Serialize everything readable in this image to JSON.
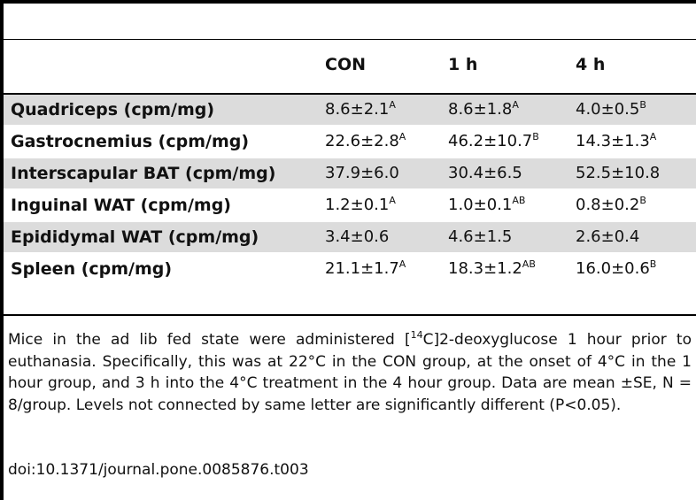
{
  "table": {
    "headers": [
      "",
      "CON",
      "1 h",
      "4 h"
    ],
    "rows": [
      {
        "label": "Quadriceps (cpm/mg)",
        "con": {
          "value": "8.6±2.1",
          "sup": "A"
        },
        "h1": {
          "value": "8.6±1.8",
          "sup": "A"
        },
        "h4": {
          "value": "4.0±0.5",
          "sup": "B"
        }
      },
      {
        "label": "Gastrocnemius (cpm/mg)",
        "con": {
          "value": "22.6±2.8",
          "sup": "A"
        },
        "h1": {
          "value": "46.2±10.7",
          "sup": "B"
        },
        "h4": {
          "value": "14.3±1.3",
          "sup": "A"
        }
      },
      {
        "label": "Interscapular BAT (cpm/mg)",
        "con": {
          "value": "37.9±6.0",
          "sup": ""
        },
        "h1": {
          "value": "30.4±6.5",
          "sup": ""
        },
        "h4": {
          "value": "52.5±10.8",
          "sup": ""
        }
      },
      {
        "label": "Inguinal WAT (cpm/mg)",
        "con": {
          "value": "1.2±0.1",
          "sup": "A"
        },
        "h1": {
          "value": "1.0±0.1",
          "sup": "AB"
        },
        "h4": {
          "value": "0.8±0.2",
          "sup": "B"
        }
      },
      {
        "label": "Epididymal WAT (cpm/mg)",
        "con": {
          "value": "3.4±0.6",
          "sup": ""
        },
        "h1": {
          "value": "4.6±1.5",
          "sup": ""
        },
        "h4": {
          "value": "2.6±0.4",
          "sup": ""
        }
      },
      {
        "label": "Spleen (cpm/mg)",
        "con": {
          "value": "21.1±1.7",
          "sup": "A"
        },
        "h1": {
          "value": "18.3±1.2",
          "sup": "AB"
        },
        "h4": {
          "value": "16.0±0.6",
          "sup": "B"
        }
      }
    ]
  },
  "footnote": {
    "lead": "Mice in the ad lib fed state were administered [",
    "isotope_sup": "14",
    "rest": "C]2-deoxyglucose 1 hour prior to euthanasia. Specifically, this was at 22°C in the CON group, at the onset of 4°C in the 1 hour group, and 3 h into the 4°C treatment in the 4 hour group. Data are mean ±SE, N = 8/group. Levels not connected by same letter are significantly different (P<0.05).",
    "doi": "doi:10.1371/journal.pone.0085876.t003"
  }
}
